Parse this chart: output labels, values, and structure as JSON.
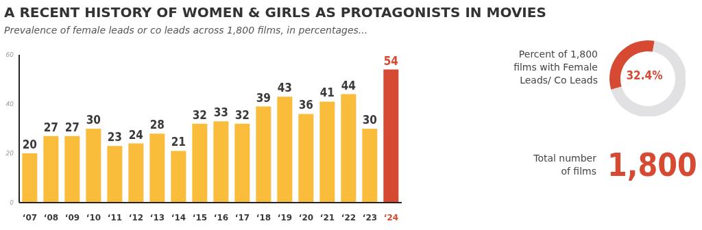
{
  "chart_data": [
    {
      "type": "bar",
      "title": "A RECENT HISTORY OF WOMEN & GIRLS AS PROTAGONISTS IN MOVIES",
      "subtitle": "Prevalence of female leads or co leads across 1,800 films, in percentages...",
      "categories": [
        "‘07",
        "‘08",
        "‘09",
        "‘10",
        "‘11",
        "‘12",
        "‘13",
        "‘14",
        "‘15",
        "‘16",
        "‘17",
        "‘18",
        "‘19",
        "‘20",
        "‘21",
        "‘22",
        "‘23",
        "‘24"
      ],
      "values": [
        20,
        27,
        27,
        30,
        23,
        24,
        28,
        21,
        32,
        33,
        32,
        39,
        43,
        36,
        41,
        44,
        30,
        54
      ],
      "colors": [
        "#fabd3b",
        "#fabd3b",
        "#fabd3b",
        "#fabd3b",
        "#fabd3b",
        "#fabd3b",
        "#fabd3b",
        "#fabd3b",
        "#fabd3b",
        "#fabd3b",
        "#fabd3b",
        "#fabd3b",
        "#fabd3b",
        "#fabd3b",
        "#fabd3b",
        "#fabd3b",
        "#fabd3b",
        "#d64a33"
      ],
      "ylim": [
        0,
        60
      ],
      "yticks": [
        0,
        20,
        40,
        60
      ],
      "data_labels": true
    },
    {
      "type": "donut",
      "title": "Percent of 1,800 films with Female Leads/ Co Leads",
      "categories": [
        null,
        null
      ],
      "values": [
        32.4,
        67.6
      ],
      "colors": [
        "#d64a33",
        "#e1e1e3"
      ],
      "value_labels": [
        "32.4%",
        null
      ]
    },
    {
      "type": "other",
      "title": "Total number of films",
      "annotations": [
        "1,800"
      ],
      "color": "#d64a33"
    }
  ]
}
